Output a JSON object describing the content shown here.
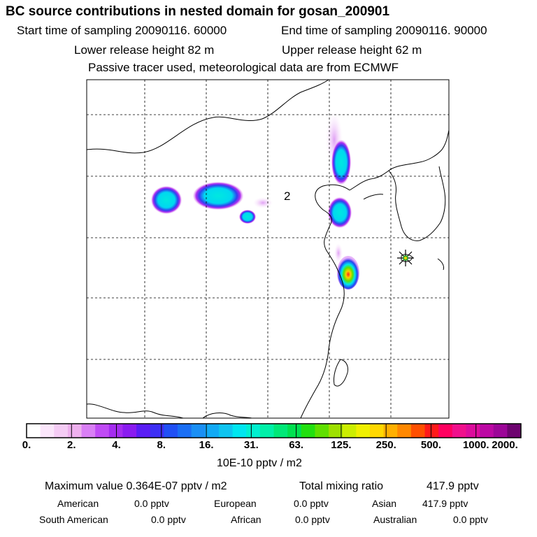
{
  "header": {
    "title": "BC  source contributions in nested domain for gosan_200901",
    "start_label": "Start time of sampling 20090116. 60000",
    "end_label": "End time of sampling 20090116. 90000",
    "lower_label": "Lower release height   82 m",
    "upper_label": "Upper release height   62 m",
    "tracer_note": "Passive tracer used, meteorological data are from ECMWF"
  },
  "chart_data": {
    "type": "heatmap",
    "title": "BC  source contributions in nested domain for gosan_200901",
    "grid": true,
    "map_label": "2",
    "colorbar": {
      "ticks": [
        "0.",
        "2.",
        "4.",
        "8.",
        "16.",
        "31.",
        "63.",
        "125.",
        "250.",
        "500.",
        "1000.",
        "2000."
      ],
      "colors": [
        "#ffffff",
        "#fbe6fb",
        "#f5ccf5",
        "#eeb0ee",
        "#d97ff5",
        "#c04bf5",
        "#a52cf0",
        "#8a1cf0",
        "#5a1df5",
        "#3d2ff5",
        "#2050f5",
        "#1a6ff5",
        "#1a8ff5",
        "#12aaf5",
        "#0fc4f0",
        "#00e6f0",
        "#00f0d0",
        "#00f0a8",
        "#00e878",
        "#00e050",
        "#22e010",
        "#60e000",
        "#9ee000",
        "#ccee00",
        "#f0f000",
        "#ffd800",
        "#ffb000",
        "#ff8800",
        "#ff5000",
        "#ff1a1a",
        "#ff0060",
        "#f0108c",
        "#dc0c9c",
        "#bc08a4",
        "#9c0698",
        "#6e0470"
      ],
      "units": "10E-10 pptv / m2"
    }
  },
  "summary": {
    "max_label": "Maximum value  0.364E-07 pptv / m2",
    "total_label": "Total mixing ratio",
    "total_value": "417.9 pptv",
    "regions": [
      {
        "name": "American",
        "value": "0.0 pptv"
      },
      {
        "name": "European",
        "value": "0.0 pptv"
      },
      {
        "name": "Asian",
        "value": "417.9 pptv"
      },
      {
        "name": "South American",
        "value": "0.0 pptv"
      },
      {
        "name": "African",
        "value": "0.0 pptv"
      },
      {
        "name": "Australian",
        "value": "0.0 pptv"
      }
    ]
  },
  "icons": {
    "receptor": "star-marker-icon"
  },
  "colors": {
    "grid": "#000000",
    "coast": "#000000",
    "receptor": "#2ca02c"
  }
}
